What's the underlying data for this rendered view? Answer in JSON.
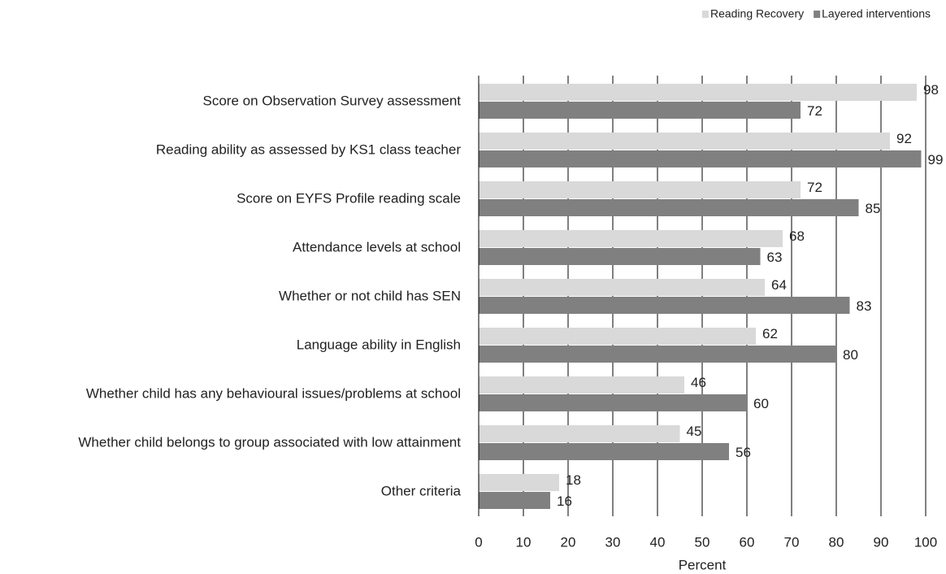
{
  "chart_data": {
    "type": "bar",
    "orientation": "horizontal",
    "xlabel": "Percent",
    "categories": [
      "Score on Observation Survey assessment",
      "Reading ability as assessed by KS1 class teacher",
      "Score on EYFS Profile reading  scale",
      "Attendance levels at school",
      "Whether or not child has SEN",
      "Language ability in English",
      "Whether child has any behavioural issues/problems at  school",
      "Whether child belongs to group associated with low attainment",
      "Other criteria"
    ],
    "series": [
      {
        "name": "Reading Recovery",
        "color": "#d9d9d9",
        "values": [
          98,
          92,
          72,
          68,
          64,
          62,
          46,
          45,
          18
        ]
      },
      {
        "name": "Layered interventions",
        "color": "#808080",
        "values": [
          72,
          99,
          85,
          63,
          83,
          80,
          60,
          56,
          16
        ]
      }
    ],
    "xlim": [
      0,
      100
    ],
    "xticks": [
      0,
      10,
      20,
      30,
      40,
      50,
      60,
      70,
      80,
      90,
      100
    ],
    "grid": true,
    "legend": "top-right"
  }
}
